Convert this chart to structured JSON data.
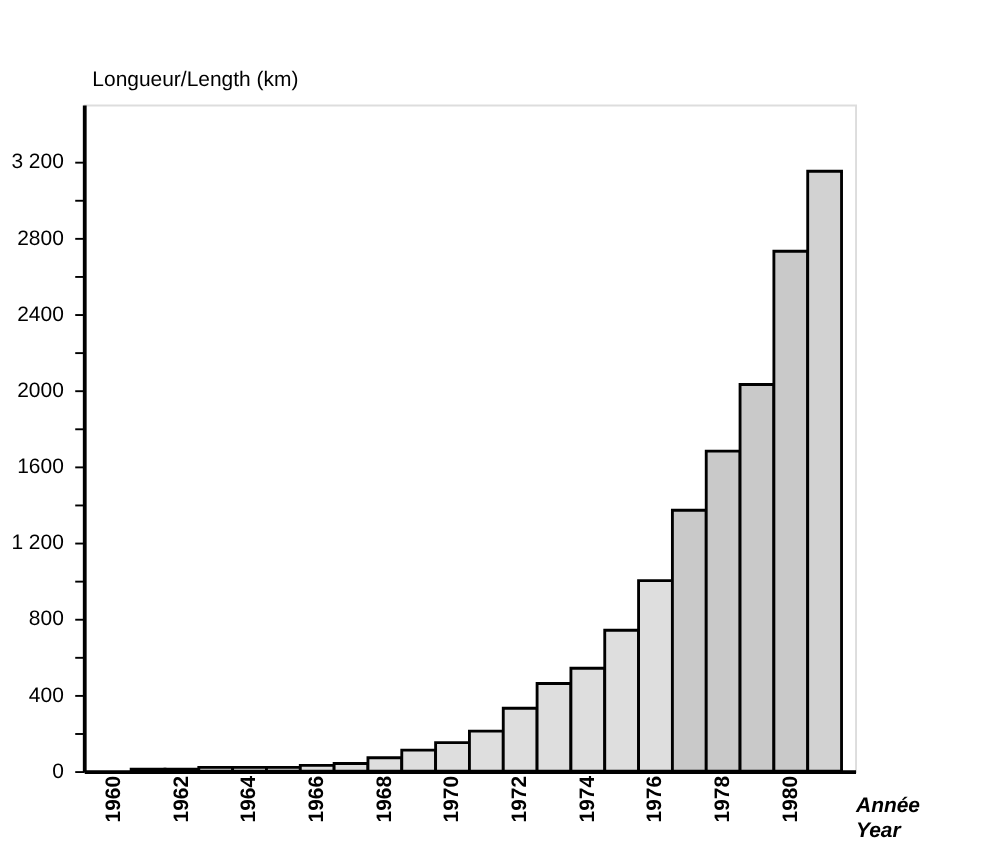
{
  "chart_data": {
    "type": "bar",
    "ylabel": "Longueur/Length (km)",
    "xlabel": "Année\nYear",
    "categories": [
      "1960",
      null,
      "1962",
      null,
      "1964",
      null,
      "1966",
      null,
      "1968",
      null,
      "1970",
      null,
      "1972",
      null,
      "1974",
      null,
      "1976",
      null,
      "1978",
      null,
      "1980",
      null
    ],
    "values": [
      null,
      10,
      10,
      20,
      20,
      20,
      30,
      40,
      70,
      110,
      150,
      210,
      330,
      460,
      540,
      740,
      1000,
      1370,
      1680,
      2030,
      2730,
      3150
    ],
    "colors": [
      "#dedede",
      "#dedede",
      "#dedede",
      "#dedede",
      "#dedede",
      "#dedede",
      "#dedede",
      "#dedede",
      "#dedede",
      "#dedede",
      "#dedede",
      "#dedede",
      "#dedede",
      "#dedede",
      "#dedede",
      "#dedede",
      "#dedede",
      "#c9c9c9",
      "#c9c9c9",
      "#c9c9c9",
      "#c9c9c9",
      "#d2d2d2"
    ],
    "ylim": [
      0,
      3500
    ],
    "yticks": [
      0,
      {
        "value": 200,
        "label": null
      },
      400,
      {
        "value": 600,
        "label": null
      },
      800,
      {
        "value": 1000,
        "label": null
      },
      {
        "value": 1200,
        "label": "1 200"
      },
      {
        "value": 1400,
        "label": null
      },
      1600,
      {
        "value": 1800,
        "label": null
      },
      2000,
      {
        "value": 2200,
        "label": null
      },
      2400,
      {
        "value": 2600,
        "label": null
      },
      2800,
      {
        "value": 3000,
        "label": null
      },
      {
        "value": 3200,
        "label": "3 200"
      }
    ],
    "grid": false
  }
}
